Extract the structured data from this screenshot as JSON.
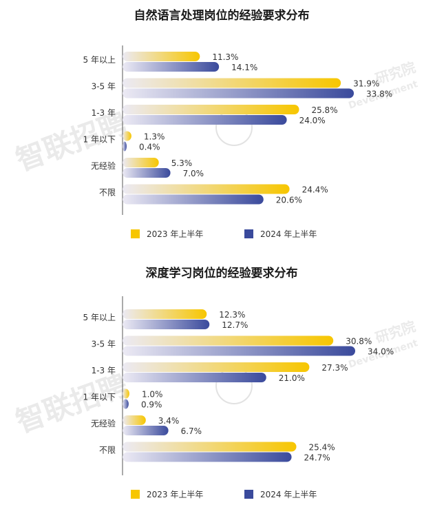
{
  "colors": {
    "y2023_start": "#ECEAF4",
    "y2023_end": "#F7C600",
    "y2024_start": "#ECEAF4",
    "y2024_end": "#3A4A9C",
    "axis": "#555555"
  },
  "watermark": {
    "logo_text": "智联招聘",
    "institute_text": "研究院",
    "institute_sub": "Development"
  },
  "chart_data": [
    {
      "type": "bar",
      "orientation": "horizontal",
      "title": "自然语言处理岗位的经验要求分布",
      "categories": [
        "5 年以上",
        "3-5 年",
        "1-3 年",
        "1 年以下",
        "无经验",
        "不限"
      ],
      "series": [
        {
          "name": "2023 年上半年",
          "values": [
            11.3,
            31.9,
            25.8,
            1.3,
            5.3,
            24.4
          ],
          "labels": [
            "11.3%",
            "31.9%",
            "25.8%",
            "1.3%",
            "5.3%",
            "24.4%"
          ]
        },
        {
          "name": "2024 年上半年",
          "values": [
            14.1,
            33.8,
            24.0,
            0.4,
            7.0,
            20.6
          ],
          "labels": [
            "14.1%",
            "33.8%",
            "24.0%",
            "0.4%",
            "7.0%",
            "20.6%"
          ]
        }
      ],
      "unit": "%",
      "xlim": [
        0,
        34
      ],
      "grid": false,
      "legend": "bottom"
    },
    {
      "type": "bar",
      "orientation": "horizontal",
      "title": "深度学习岗位的经验要求分布",
      "categories": [
        "5 年以上",
        "3-5 年",
        "1-3 年",
        "1 年以下",
        "无经验",
        "不限"
      ],
      "series": [
        {
          "name": "2023 年上半年",
          "values": [
            12.3,
            30.8,
            27.3,
            1.0,
            3.4,
            25.4
          ],
          "labels": [
            "12.3%",
            "30.8%",
            "27.3%",
            "1.0%",
            "3.4%",
            "25.4%"
          ]
        },
        {
          "name": "2024 年上半年",
          "values": [
            12.7,
            34.0,
            21.0,
            0.9,
            6.7,
            24.7
          ],
          "labels": [
            "12.7%",
            "34.0%",
            "21.0%",
            "0.9%",
            "6.7%",
            "24.7%"
          ]
        }
      ],
      "unit": "%",
      "xlim": [
        0,
        34
      ],
      "grid": false,
      "legend": "bottom"
    }
  ]
}
